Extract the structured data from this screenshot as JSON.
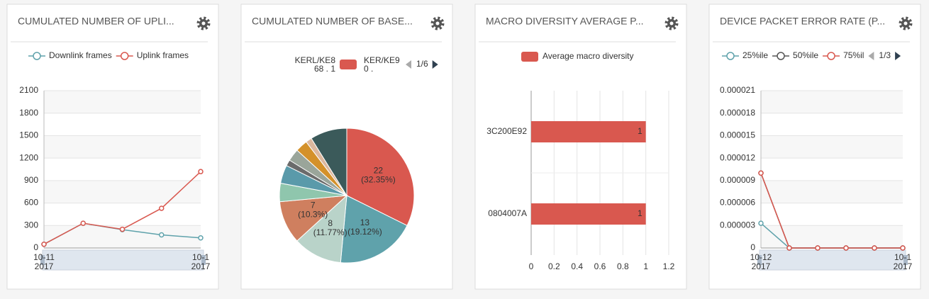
{
  "chart_data": [
    {
      "type": "line",
      "title": "CUMULATED NUMBER OF UPLI...",
      "categories": [
        "10-11",
        null,
        null,
        null,
        "10-1"
      ],
      "category_years": [
        "2017",
        null,
        null,
        null,
        "2017"
      ],
      "series": [
        {
          "name": "Downlink frames",
          "color": "#5fa2ab",
          "values": [
            50,
            330,
            245,
            175,
            135
          ]
        },
        {
          "name": "Uplink frames",
          "color": "#d9584f",
          "values": [
            50,
            330,
            250,
            530,
            1020
          ]
        }
      ],
      "ylim": [
        0,
        2100
      ],
      "yticks": [
        0,
        300,
        600,
        900,
        1200,
        1500,
        1800,
        2100
      ],
      "grid": true
    },
    {
      "type": "pie",
      "title": "CUMULATED NUMBER OF BASE...",
      "values": [
        22,
        13,
        8,
        7,
        3,
        3,
        1,
        2,
        2,
        1,
        6
      ],
      "percent_labels": [
        "(32.35%)",
        "(19.12%)",
        "(11.77%)",
        "(10.3%)",
        null,
        null,
        null,
        null,
        null,
        null,
        null
      ],
      "colors": [
        "#d9584f",
        "#5fa2ab",
        "#b9d3c9",
        "#cf7f5f",
        "#8fc6ad",
        "#5a9aaa",
        "#6b6b6b",
        "#9aa59a",
        "#d4912a",
        "#dcb89e",
        "#3b5a5a"
      ],
      "legend": [
        {
          "name": "KERL/KE8",
          "detail": "68 . 1",
          "color": "#d9584f"
        },
        {
          "name": "KER/KE9",
          "detail": "0 ."
        }
      ],
      "legend_page": "1/6"
    },
    {
      "type": "hbar",
      "title": "MACRO DIVERSITY AVERAGE P...",
      "series": [
        {
          "name": "Average macro diversity",
          "color": "#d9584f",
          "values": [
            1,
            1
          ]
        }
      ],
      "categories": [
        "3C200E92",
        "0804007A"
      ],
      "xlim": [
        0,
        1.2
      ],
      "xticks": [
        0,
        0.2,
        0.4,
        0.6,
        0.8,
        1,
        1.2
      ],
      "grid": true
    },
    {
      "type": "line",
      "title": "DEVICE PACKET ERROR RATE (P...",
      "categories": [
        "10-12",
        null,
        null,
        null,
        null,
        "10-1"
      ],
      "category_years": [
        "2017",
        null,
        null,
        null,
        null,
        "2017"
      ],
      "series": [
        {
          "name": "25%ile",
          "color": "#5fa2ab",
          "values": [
            3.3e-06,
            0,
            0,
            0,
            0,
            0
          ]
        },
        {
          "name": "50%ile",
          "color": "#555555",
          "values": [
            1e-05,
            0,
            0,
            0,
            0,
            0
          ]
        },
        {
          "name": "75%il",
          "color": "#d9584f",
          "values": [
            1e-05,
            0,
            0,
            0,
            0,
            0
          ]
        }
      ],
      "legend_page": "1/3",
      "ylim": [
        0,
        2.1e-05
      ],
      "yticks": [
        0,
        3e-06,
        6e-06,
        9e-06,
        1.2e-05,
        1.5e-05,
        1.8e-05,
        2.1e-05
      ],
      "grid": true
    }
  ]
}
